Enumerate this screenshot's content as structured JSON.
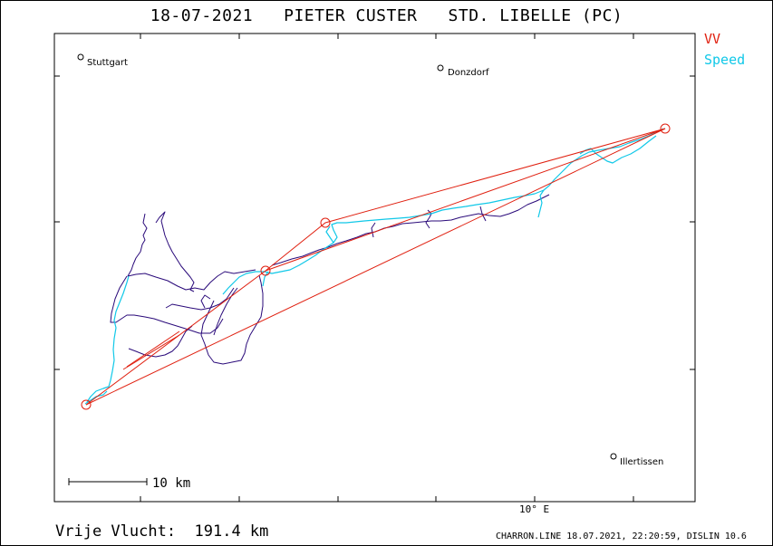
{
  "title": "18-07-2021   PIETER CUSTER   STD. LIBELLE (PC)",
  "legend": {
    "vv": "VV",
    "speed": "Speed",
    "vv_color": "#e02010",
    "speed_color": "#10c8e8",
    "track_color": "#2a0a7a"
  },
  "places": [
    {
      "name": "Stuttgart"
    },
    {
      "name": "Donzdorf"
    },
    {
      "name": "Illertissen"
    }
  ],
  "scale_label": "10 km",
  "axis_label": "10° E",
  "footer": {
    "distance": "Vrije Vlucht:  191.4 km",
    "software": "CHARRON.LINE 18.07.2021, 22:20:59, DISLIN 10.6"
  }
}
